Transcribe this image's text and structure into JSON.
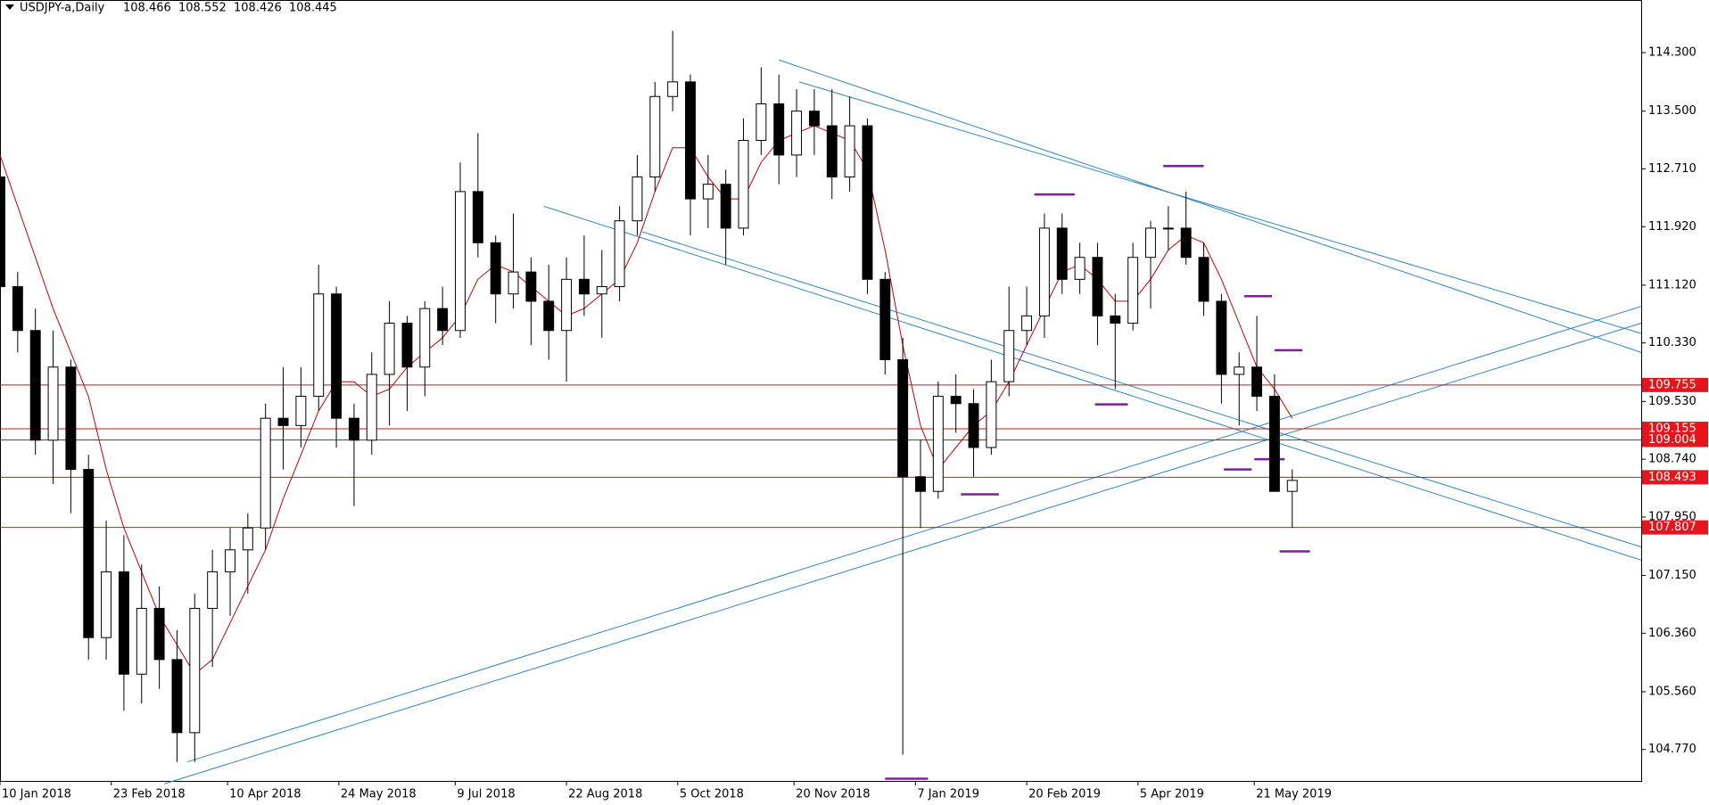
{
  "chart_data": {
    "type": "candlestick",
    "title": "USDJPY-a,Daily",
    "quote": [
      108.466,
      108.552,
      108.426,
      108.445
    ],
    "xlim": [
      "2018-01-10",
      "2019-10-21"
    ],
    "xticks": [
      {
        "value": "2018-01-10",
        "label": "10 Jan 2018"
      },
      {
        "value": "2018-02-23",
        "label": "23 Feb 2018"
      },
      {
        "value": "2018-04-10",
        "label": "10 Apr 2018"
      },
      {
        "value": "2018-05-24",
        "label": "24 May 2018"
      },
      {
        "value": "2018-07-09",
        "label": "9 Jul 2018"
      },
      {
        "value": "2018-08-22",
        "label": "22 Aug 2018"
      },
      {
        "value": "2018-10-05",
        "label": "5 Oct 2018"
      },
      {
        "value": "2018-11-20",
        "label": "20 Nov 2018"
      },
      {
        "value": "2019-01-07",
        "label": "7 Jan 2019"
      },
      {
        "value": "2019-02-20",
        "label": "20 Feb 2019"
      },
      {
        "value": "2019-04-05",
        "label": "5 Apr 2019"
      },
      {
        "value": "2019-05-21",
        "label": "21 May 2019"
      }
    ],
    "ylim": [
      104.34,
      115.02
    ],
    "yticks": [
      {
        "value": 114.3,
        "label": "114.300"
      },
      {
        "value": 113.5,
        "label": "113.500"
      },
      {
        "value": 112.71,
        "label": "112.710"
      },
      {
        "value": 111.92,
        "label": "111.920"
      },
      {
        "value": 111.12,
        "label": "111.120"
      },
      {
        "value": 110.33,
        "label": "110.330"
      },
      {
        "value": 109.53,
        "label": "109.530"
      },
      {
        "value": 108.74,
        "label": "108.740"
      },
      {
        "value": 107.95,
        "label": "107.950"
      },
      {
        "value": 107.15,
        "label": "107.150"
      },
      {
        "value": 106.36,
        "label": "106.360"
      },
      {
        "value": 105.56,
        "label": "105.560"
      },
      {
        "value": 104.77,
        "label": "104.770"
      }
    ],
    "candle_color": "#000000",
    "candles": {
      "x": [
        "2018-01-10",
        "2018-01-17",
        "2018-01-24",
        "2018-01-31",
        "2018-02-07",
        "2018-02-14",
        "2018-02-21",
        "2018-02-28",
        "2018-03-07",
        "2018-03-14",
        "2018-03-21",
        "2018-03-28",
        "2018-04-04",
        "2018-04-11",
        "2018-04-18",
        "2018-04-25",
        "2018-05-02",
        "2018-05-09",
        "2018-05-16",
        "2018-05-23",
        "2018-05-30",
        "2018-06-06",
        "2018-06-13",
        "2018-06-20",
        "2018-06-27",
        "2018-07-04",
        "2018-07-11",
        "2018-07-18",
        "2018-07-25",
        "2018-08-01",
        "2018-08-08",
        "2018-08-15",
        "2018-08-22",
        "2018-08-29",
        "2018-09-05",
        "2018-09-12",
        "2018-09-19",
        "2018-09-26",
        "2018-10-03",
        "2018-10-10",
        "2018-10-17",
        "2018-10-24",
        "2018-10-31",
        "2018-11-07",
        "2018-11-14",
        "2018-11-21",
        "2018-11-28",
        "2018-12-05",
        "2018-12-12",
        "2018-12-19",
        "2018-12-26",
        "2019-01-02",
        "2019-01-09",
        "2019-01-16",
        "2019-01-23",
        "2019-01-30",
        "2019-02-06",
        "2019-02-13",
        "2019-02-20",
        "2019-02-27",
        "2019-03-06",
        "2019-03-13",
        "2019-03-20",
        "2019-03-27",
        "2019-04-03",
        "2019-04-10",
        "2019-04-17",
        "2019-04-24",
        "2019-05-01",
        "2019-05-08",
        "2019-05-15",
        "2019-05-22",
        "2019-05-29",
        "2019-06-05"
      ],
      "open": [
        112.6,
        111.1,
        110.5,
        109.0,
        110.0,
        108.6,
        106.3,
        107.2,
        105.8,
        106.7,
        106.0,
        105.0,
        106.7,
        107.2,
        107.5,
        107.8,
        109.3,
        109.2,
        109.6,
        111.0,
        109.3,
        109.0,
        109.9,
        110.6,
        110.0,
        110.8,
        110.5,
        112.4,
        111.7,
        111.0,
        111.3,
        110.9,
        110.5,
        111.2,
        111.0,
        111.1,
        112.0,
        112.6,
        113.7,
        113.9,
        112.3,
        112.5,
        111.9,
        113.1,
        113.6,
        112.9,
        113.5,
        113.3,
        112.6,
        113.3,
        111.2,
        110.1,
        108.5,
        108.3,
        109.6,
        109.5,
        108.9,
        109.8,
        110.5,
        110.7,
        111.9,
        111.2,
        111.5,
        110.7,
        110.6,
        111.5,
        111.9,
        111.9,
        111.5,
        110.9,
        109.9,
        110.0,
        109.6,
        108.3
      ],
      "high": [
        112.8,
        111.3,
        110.8,
        110.5,
        110.1,
        108.8,
        107.9,
        107.7,
        107.3,
        107.0,
        106.4,
        106.9,
        107.5,
        107.8,
        108.0,
        109.5,
        110.0,
        110.0,
        111.4,
        111.1,
        109.5,
        110.2,
        110.9,
        110.7,
        110.9,
        111.1,
        112.8,
        113.2,
        111.8,
        112.1,
        111.5,
        111.4,
        111.5,
        111.8,
        111.6,
        112.2,
        112.9,
        113.9,
        114.6,
        114.0,
        112.9,
        112.7,
        113.4,
        114.1,
        114.0,
        113.8,
        113.8,
        113.8,
        113.7,
        113.4,
        111.3,
        110.4,
        109.0,
        109.8,
        109.9,
        109.7,
        110.1,
        111.1,
        111.1,
        112.1,
        112.1,
        111.7,
        111.7,
        111.0,
        111.7,
        112.0,
        112.2,
        112.4,
        111.7,
        111.0,
        110.2,
        110.7,
        109.9,
        108.6
      ],
      "low": [
        110.9,
        110.2,
        108.8,
        108.4,
        108.0,
        106.0,
        106.0,
        105.3,
        105.4,
        105.6,
        104.6,
        104.6,
        105.9,
        106.6,
        106.9,
        107.5,
        108.6,
        108.9,
        109.4,
        108.9,
        108.1,
        108.8,
        109.2,
        109.4,
        109.6,
        110.3,
        110.4,
        111.5,
        110.6,
        110.8,
        110.3,
        110.1,
        109.8,
        110.7,
        110.4,
        110.9,
        111.8,
        112.4,
        113.5,
        111.8,
        111.9,
        111.4,
        111.8,
        112.9,
        112.5,
        112.6,
        112.9,
        112.3,
        112.4,
        111.0,
        109.9,
        104.7,
        107.8,
        108.2,
        109.1,
        108.5,
        108.8,
        109.6,
        110.3,
        110.4,
        111.0,
        111.0,
        110.3,
        109.7,
        110.5,
        110.8,
        111.6,
        111.4,
        110.7,
        109.5,
        109.2,
        109.4,
        108.3,
        107.8
      ],
      "close": [
        111.1,
        110.5,
        109.0,
        110.0,
        108.6,
        106.3,
        107.2,
        105.8,
        106.7,
        106.0,
        105.0,
        106.7,
        107.2,
        107.5,
        107.8,
        109.3,
        109.2,
        109.6,
        111.0,
        109.3,
        109.0,
        109.9,
        110.6,
        110.0,
        110.8,
        110.5,
        112.4,
        111.7,
        111.0,
        111.3,
        110.9,
        110.5,
        111.2,
        111.0,
        111.1,
        112.0,
        112.6,
        113.7,
        113.9,
        112.3,
        112.5,
        111.9,
        113.1,
        113.6,
        112.9,
        113.5,
        113.3,
        112.6,
        113.3,
        111.2,
        110.1,
        108.5,
        108.3,
        109.6,
        109.5,
        108.9,
        109.8,
        110.5,
        110.7,
        111.9,
        111.2,
        111.5,
        110.7,
        110.6,
        111.5,
        111.9,
        111.9,
        111.5,
        110.9,
        109.9,
        110.0,
        109.6,
        108.3,
        108.45
      ]
    },
    "ma": {
      "color": "#c00000",
      "values": [
        112.9,
        112.2,
        111.5,
        110.8,
        110.2,
        109.6,
        108.6,
        107.8,
        107.2,
        106.6,
        106.2,
        105.8,
        106.0,
        106.5,
        107.0,
        107.5,
        108.2,
        108.8,
        109.4,
        109.8,
        109.8,
        109.6,
        109.7,
        110.0,
        110.2,
        110.4,
        110.7,
        111.2,
        111.4,
        111.3,
        111.1,
        110.9,
        110.7,
        110.8,
        111.0,
        111.2,
        111.7,
        112.4,
        113.0,
        113.0,
        112.6,
        112.3,
        112.3,
        112.8,
        113.1,
        113.2,
        113.3,
        113.2,
        113.1,
        112.7,
        111.6,
        110.3,
        109.2,
        108.6,
        108.9,
        109.2,
        109.4,
        109.8,
        110.3,
        110.8,
        111.3,
        111.4,
        111.2,
        110.9,
        110.9,
        111.2,
        111.6,
        111.8,
        111.7,
        111.2,
        110.6,
        110.0,
        109.7,
        109.3
      ]
    },
    "levels": [
      109.755,
      109.155,
      109.004,
      108.493,
      107.807
    ],
    "level_color": "#b22222",
    "trendline_color": "#2e86c1",
    "trendlines": [
      {
        "x": [
          "2018-11-14",
          "2019-10-21"
        ],
        "y": [
          114.2,
          110.2
        ]
      },
      {
        "x": [
          "2018-11-22",
          "2019-10-21"
        ],
        "y": [
          113.9,
          110.46
        ]
      },
      {
        "x": [
          "2018-08-13",
          "2019-10-21"
        ],
        "y": [
          112.2,
          107.36
        ]
      },
      {
        "x": [
          "2018-09-21",
          "2019-10-21"
        ],
        "y": [
          111.85,
          107.54
        ]
      },
      {
        "x": [
          "2018-03-25",
          "2019-10-21"
        ],
        "y": [
          104.6,
          110.83
        ]
      },
      {
        "x": [
          "2018-03-16",
          "2019-10-21"
        ],
        "y": [
          104.3,
          110.6
        ]
      }
    ],
    "marker_color": "#7b1fa2",
    "markers": [
      {
        "x": [
          "2019-04-15",
          "2019-05-01"
        ],
        "y": 112.75
      },
      {
        "x": [
          "2019-02-23",
          "2019-03-11"
        ],
        "y": 112.36
      },
      {
        "x": [
          "2019-05-17",
          "2019-05-28"
        ],
        "y": 110.97
      },
      {
        "x": [
          "2019-05-29",
          "2019-06-09"
        ],
        "y": 110.23
      },
      {
        "x": [
          "2019-03-19",
          "2019-04-01"
        ],
        "y": 109.49
      },
      {
        "x": [
          "2019-05-09",
          "2019-05-20"
        ],
        "y": 108.6
      },
      {
        "x": [
          "2019-05-21",
          "2019-06-02"
        ],
        "y": 108.74
      },
      {
        "x": [
          "2019-01-25",
          "2019-02-09"
        ],
        "y": 108.26
      },
      {
        "x": [
          "2019-05-31",
          "2019-06-12"
        ],
        "y": 107.48
      },
      {
        "x": [
          "2018-12-26",
          "2019-01-12"
        ],
        "y": 104.37
      }
    ]
  }
}
